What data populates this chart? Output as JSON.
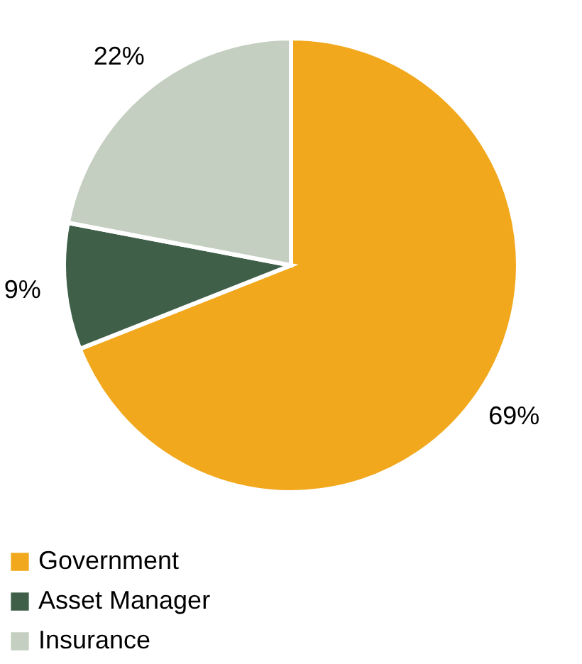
{
  "chart_data": {
    "type": "pie",
    "categories": [
      "Government",
      "Asset Manager",
      "Insurance"
    ],
    "values": [
      69,
      9,
      22
    ],
    "colors": [
      "#f2a81d",
      "#3f5f49",
      "#c4cfc1"
    ],
    "value_labels": [
      "69%",
      "9%",
      "22%"
    ],
    "legend": "bottom"
  }
}
